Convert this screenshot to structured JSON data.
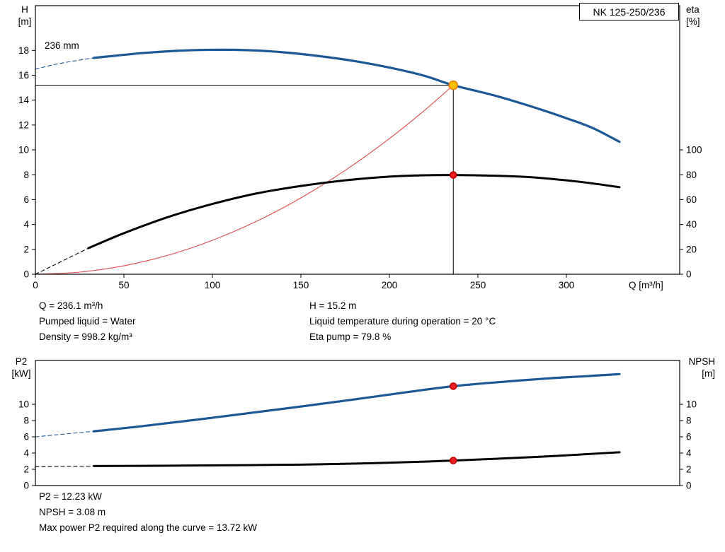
{
  "pump_type": "NK 125-250/236",
  "top_info": {
    "left": [
      "Q = 236.1 m³/h",
      "Pumped liquid = Water",
      "Density = 998.2 kg/m³"
    ],
    "right": [
      "H = 15.2 m",
      "Liquid temperature during operation = 20 °C",
      "Eta pump = 79.8 %"
    ]
  },
  "bottom_info": [
    "P2 = 12.23 kW",
    "NPSH = 3.08 m",
    "Max power P2 required along the curve = 13.72 kW"
  ],
  "colors": {
    "pump_curve_blue": "#1c5796",
    "eta_npsh_black": "#000000",
    "system_curve_red": "#e04b4b",
    "duty_point_fill": "#ffbf00",
    "duty_point_stroke": "#f07d00",
    "dot_red": "#ee1c25"
  },
  "chart_data": [
    {
      "type": "line",
      "title": "NK 125-250/236",
      "impeller_label": "236 mm",
      "xlabel": "Q [m³/h]",
      "x_range": [
        0,
        364
      ],
      "x_ticks": [
        0,
        50,
        100,
        150,
        200,
        250,
        300
      ],
      "left_axis": {
        "label": "H\n[m]",
        "unit": "m",
        "range": [
          0,
          21.6
        ],
        "ticks": [
          0,
          2,
          4,
          6,
          8,
          10,
          12,
          14,
          16,
          18
        ]
      },
      "right_axis": {
        "label": "eta\n[%]",
        "unit": "%",
        "ticks": [
          0,
          20,
          40,
          60,
          80,
          100
        ],
        "left_units_per_unit": 0.1
      },
      "duty_point": {
        "q": 236.1,
        "h": 15.2,
        "eta": 79.8
      },
      "guide_lines": [
        {
          "name": "duty-vertical-line",
          "type": "v",
          "x": 236.1,
          "from": 0,
          "to": 15.2
        },
        {
          "name": "duty-horizontal-line",
          "type": "h",
          "value": 15.2,
          "from": 0,
          "to": 236.1
        }
      ],
      "series": [
        {
          "name": "system-curve",
          "axis": "left",
          "color": "#e04b4b",
          "width": 1.1,
          "dash": false,
          "points": [
            [
              0,
              0
            ],
            [
              25,
              0.17
            ],
            [
              50,
              0.68
            ],
            [
              75,
              1.53
            ],
            [
              100,
              2.73
            ],
            [
              125,
              4.26
            ],
            [
              150,
              6.14
            ],
            [
              175,
              8.35
            ],
            [
              200,
              10.91
            ],
            [
              220,
              13.2
            ],
            [
              236.1,
              15.2
            ]
          ]
        },
        {
          "name": "pump-curve-extrapolated",
          "axis": "left",
          "color": "#1c5796",
          "width": 1.1,
          "dash": true,
          "points": [
            [
              0,
              16.5
            ],
            [
              12,
              16.9
            ],
            [
              24,
              17.2
            ],
            [
              33,
              17.4
            ]
          ]
        },
        {
          "name": "pump-curve-236mm",
          "axis": "left",
          "color": "#1c5796",
          "width": 3.2,
          "dash": false,
          "points": [
            [
              33,
              17.4
            ],
            [
              60,
              17.78
            ],
            [
              80,
              17.97
            ],
            [
              100,
              18.05
            ],
            [
              120,
              18.02
            ],
            [
              140,
              17.85
            ],
            [
              160,
              17.55
            ],
            [
              180,
              17.15
            ],
            [
              200,
              16.62
            ],
            [
              220,
              15.95
            ],
            [
              236.1,
              15.2
            ],
            [
              260,
              14.35
            ],
            [
              280,
              13.5
            ],
            [
              300,
              12.55
            ],
            [
              315,
              11.75
            ],
            [
              330,
              10.65
            ]
          ]
        },
        {
          "name": "eta-curve-extrapolated",
          "axis": "right",
          "color": "#000000",
          "width": 1.1,
          "dash": true,
          "points": [
            [
              0,
              0
            ],
            [
              10,
              7
            ],
            [
              20,
              14
            ],
            [
              30,
              21
            ]
          ]
        },
        {
          "name": "eta-curve",
          "axis": "right",
          "color": "#000000",
          "width": 3,
          "dash": false,
          "points": [
            [
              30,
              21
            ],
            [
              50,
              33
            ],
            [
              75,
              46
            ],
            [
              100,
              56.5
            ],
            [
              125,
              65
            ],
            [
              150,
              71
            ],
            [
              175,
              75.5
            ],
            [
              200,
              78.5
            ],
            [
              220,
              79.6
            ],
            [
              236.1,
              79.8
            ],
            [
              260,
              79.2
            ],
            [
              280,
              78
            ],
            [
              300,
              75.5
            ],
            [
              315,
              73
            ],
            [
              330,
              70
            ]
          ]
        }
      ],
      "markers": [
        {
          "name": "duty-point-qh",
          "x": 236.1,
          "value": 15.2,
          "axis": "left",
          "fill": "#ffbf00",
          "stroke": "#f07d00",
          "r": 6
        },
        {
          "name": "duty-point-eta",
          "x": 236.1,
          "value": 79.8,
          "axis": "right",
          "fill": "#ee1c25",
          "stroke": "#c00000",
          "r": 4.5
        }
      ]
    },
    {
      "type": "line",
      "title": "",
      "xlabel": "",
      "x_range": [
        0,
        364
      ],
      "x_ticks": [],
      "left_axis": {
        "label": "P2\n[kW]",
        "unit": "kW",
        "range": [
          0,
          15.4
        ],
        "ticks": [
          0,
          2,
          4,
          6,
          8,
          10
        ]
      },
      "right_axis": {
        "label": "NPSH\n[m]",
        "unit": "m",
        "ticks": [
          0,
          2,
          4,
          6,
          8,
          10
        ],
        "left_units_per_unit": 1
      },
      "duty_point": {
        "q": 236.1,
        "p2": 12.23,
        "npsh": 3.08
      },
      "guide_lines": [],
      "series": [
        {
          "name": "p2-curve-extrapolated",
          "axis": "left",
          "color": "#1c5796",
          "width": 1.1,
          "dash": true,
          "points": [
            [
              0,
              6.0
            ],
            [
              12,
              6.25
            ],
            [
              24,
              6.5
            ],
            [
              33,
              6.68
            ]
          ]
        },
        {
          "name": "p2-curve",
          "axis": "left",
          "color": "#1c5796",
          "width": 3.2,
          "dash": false,
          "points": [
            [
              33,
              6.68
            ],
            [
              60,
              7.3
            ],
            [
              100,
              8.35
            ],
            [
              140,
              9.45
            ],
            [
              180,
              10.6
            ],
            [
              210,
              11.5
            ],
            [
              236.1,
              12.23
            ],
            [
              260,
              12.7
            ],
            [
              290,
              13.2
            ],
            [
              310,
              13.45
            ],
            [
              330,
              13.72
            ]
          ]
        },
        {
          "name": "npsh-curve-extrapolated",
          "axis": "right",
          "color": "#000000",
          "width": 1.1,
          "dash": true,
          "points": [
            [
              0,
              2.32
            ],
            [
              15,
              2.36
            ],
            [
              33,
              2.4
            ]
          ]
        },
        {
          "name": "npsh-curve",
          "axis": "right",
          "color": "#000000",
          "width": 3,
          "dash": false,
          "points": [
            [
              33,
              2.4
            ],
            [
              70,
              2.44
            ],
            [
              110,
              2.5
            ],
            [
              150,
              2.58
            ],
            [
              190,
              2.75
            ],
            [
              220,
              2.95
            ],
            [
              236.1,
              3.08
            ],
            [
              260,
              3.3
            ],
            [
              290,
              3.6
            ],
            [
              310,
              3.85
            ],
            [
              330,
              4.1
            ]
          ]
        }
      ],
      "markers": [
        {
          "name": "duty-point-p2",
          "x": 236.1,
          "value": 12.23,
          "axis": "left",
          "fill": "#ee1c25",
          "stroke": "#c00000",
          "r": 4.5
        },
        {
          "name": "duty-point-npsh",
          "x": 236.1,
          "value": 3.08,
          "axis": "right",
          "fill": "#ee1c25",
          "stroke": "#c00000",
          "r": 4.5
        }
      ]
    }
  ]
}
